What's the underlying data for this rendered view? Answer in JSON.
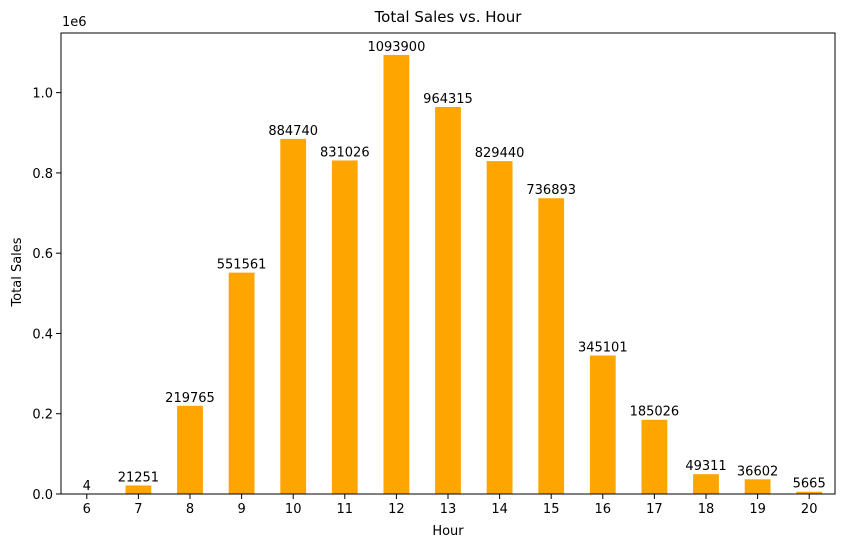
{
  "chart_data": {
    "type": "bar",
    "title": "Total Sales vs. Hour",
    "xlabel": "Hour",
    "ylabel": "Total Sales",
    "y_offset_label": "1e6",
    "categories": [
      "6",
      "7",
      "8",
      "9",
      "10",
      "11",
      "12",
      "13",
      "14",
      "15",
      "16",
      "17",
      "18",
      "19",
      "20"
    ],
    "values": [
      4,
      21251,
      219765,
      551561,
      884740,
      831026,
      1093900,
      964315,
      829440,
      736893,
      345101,
      185026,
      49311,
      36602,
      5665
    ],
    "data_labels": [
      "4",
      "21251",
      "219765",
      "551561",
      "884740",
      "831026",
      "1093900",
      "964315",
      "829440",
      "736893",
      "345101",
      "185026",
      "49311",
      "36602",
      "5665"
    ],
    "y_ticks": [
      0,
      200000,
      400000,
      600000,
      800000,
      1000000
    ],
    "y_tick_labels": [
      "0.0",
      "0.2",
      "0.4",
      "0.6",
      "0.8",
      "1.0"
    ],
    "ylim": [
      0,
      1148595
    ],
    "grid": false,
    "bar_color": "#ffa500"
  }
}
